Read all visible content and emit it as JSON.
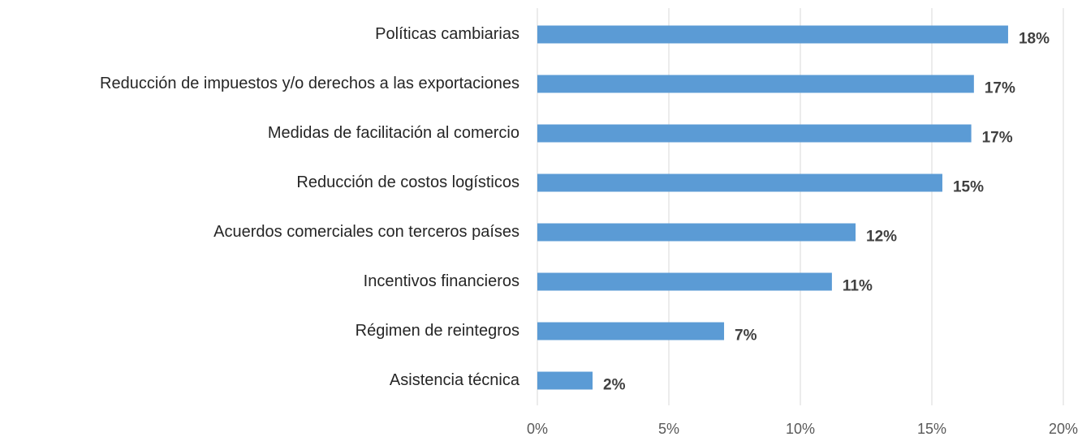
{
  "chart_data": {
    "type": "bar",
    "orientation": "horizontal",
    "categories": [
      "Políticas cambiarias",
      "Reducción de impuestos y/o derechos a las exportaciones",
      "Medidas de facilitación al comercio",
      "Reducción de costos logísticos",
      "Acuerdos comerciales con terceros países",
      "Incentivos financieros",
      "Régimen de reintegros",
      "Asistencia técnica"
    ],
    "values": [
      17.9,
      16.6,
      16.5,
      15.4,
      12.1,
      11.2,
      7.1,
      2.1
    ],
    "value_labels": [
      "18%",
      "17%",
      "17%",
      "15%",
      "12%",
      "11%",
      "7%",
      "2%"
    ],
    "color": "#5b9bd5",
    "xlim": [
      0,
      20
    ],
    "xticks": [
      {
        "value": 0,
        "label": "0%"
      },
      {
        "value": 5,
        "label": "5%"
      },
      {
        "value": 10,
        "label": "10%"
      },
      {
        "value": 15,
        "label": "15%"
      },
      {
        "value": 20,
        "label": "20%"
      }
    ],
    "grid": true
  }
}
